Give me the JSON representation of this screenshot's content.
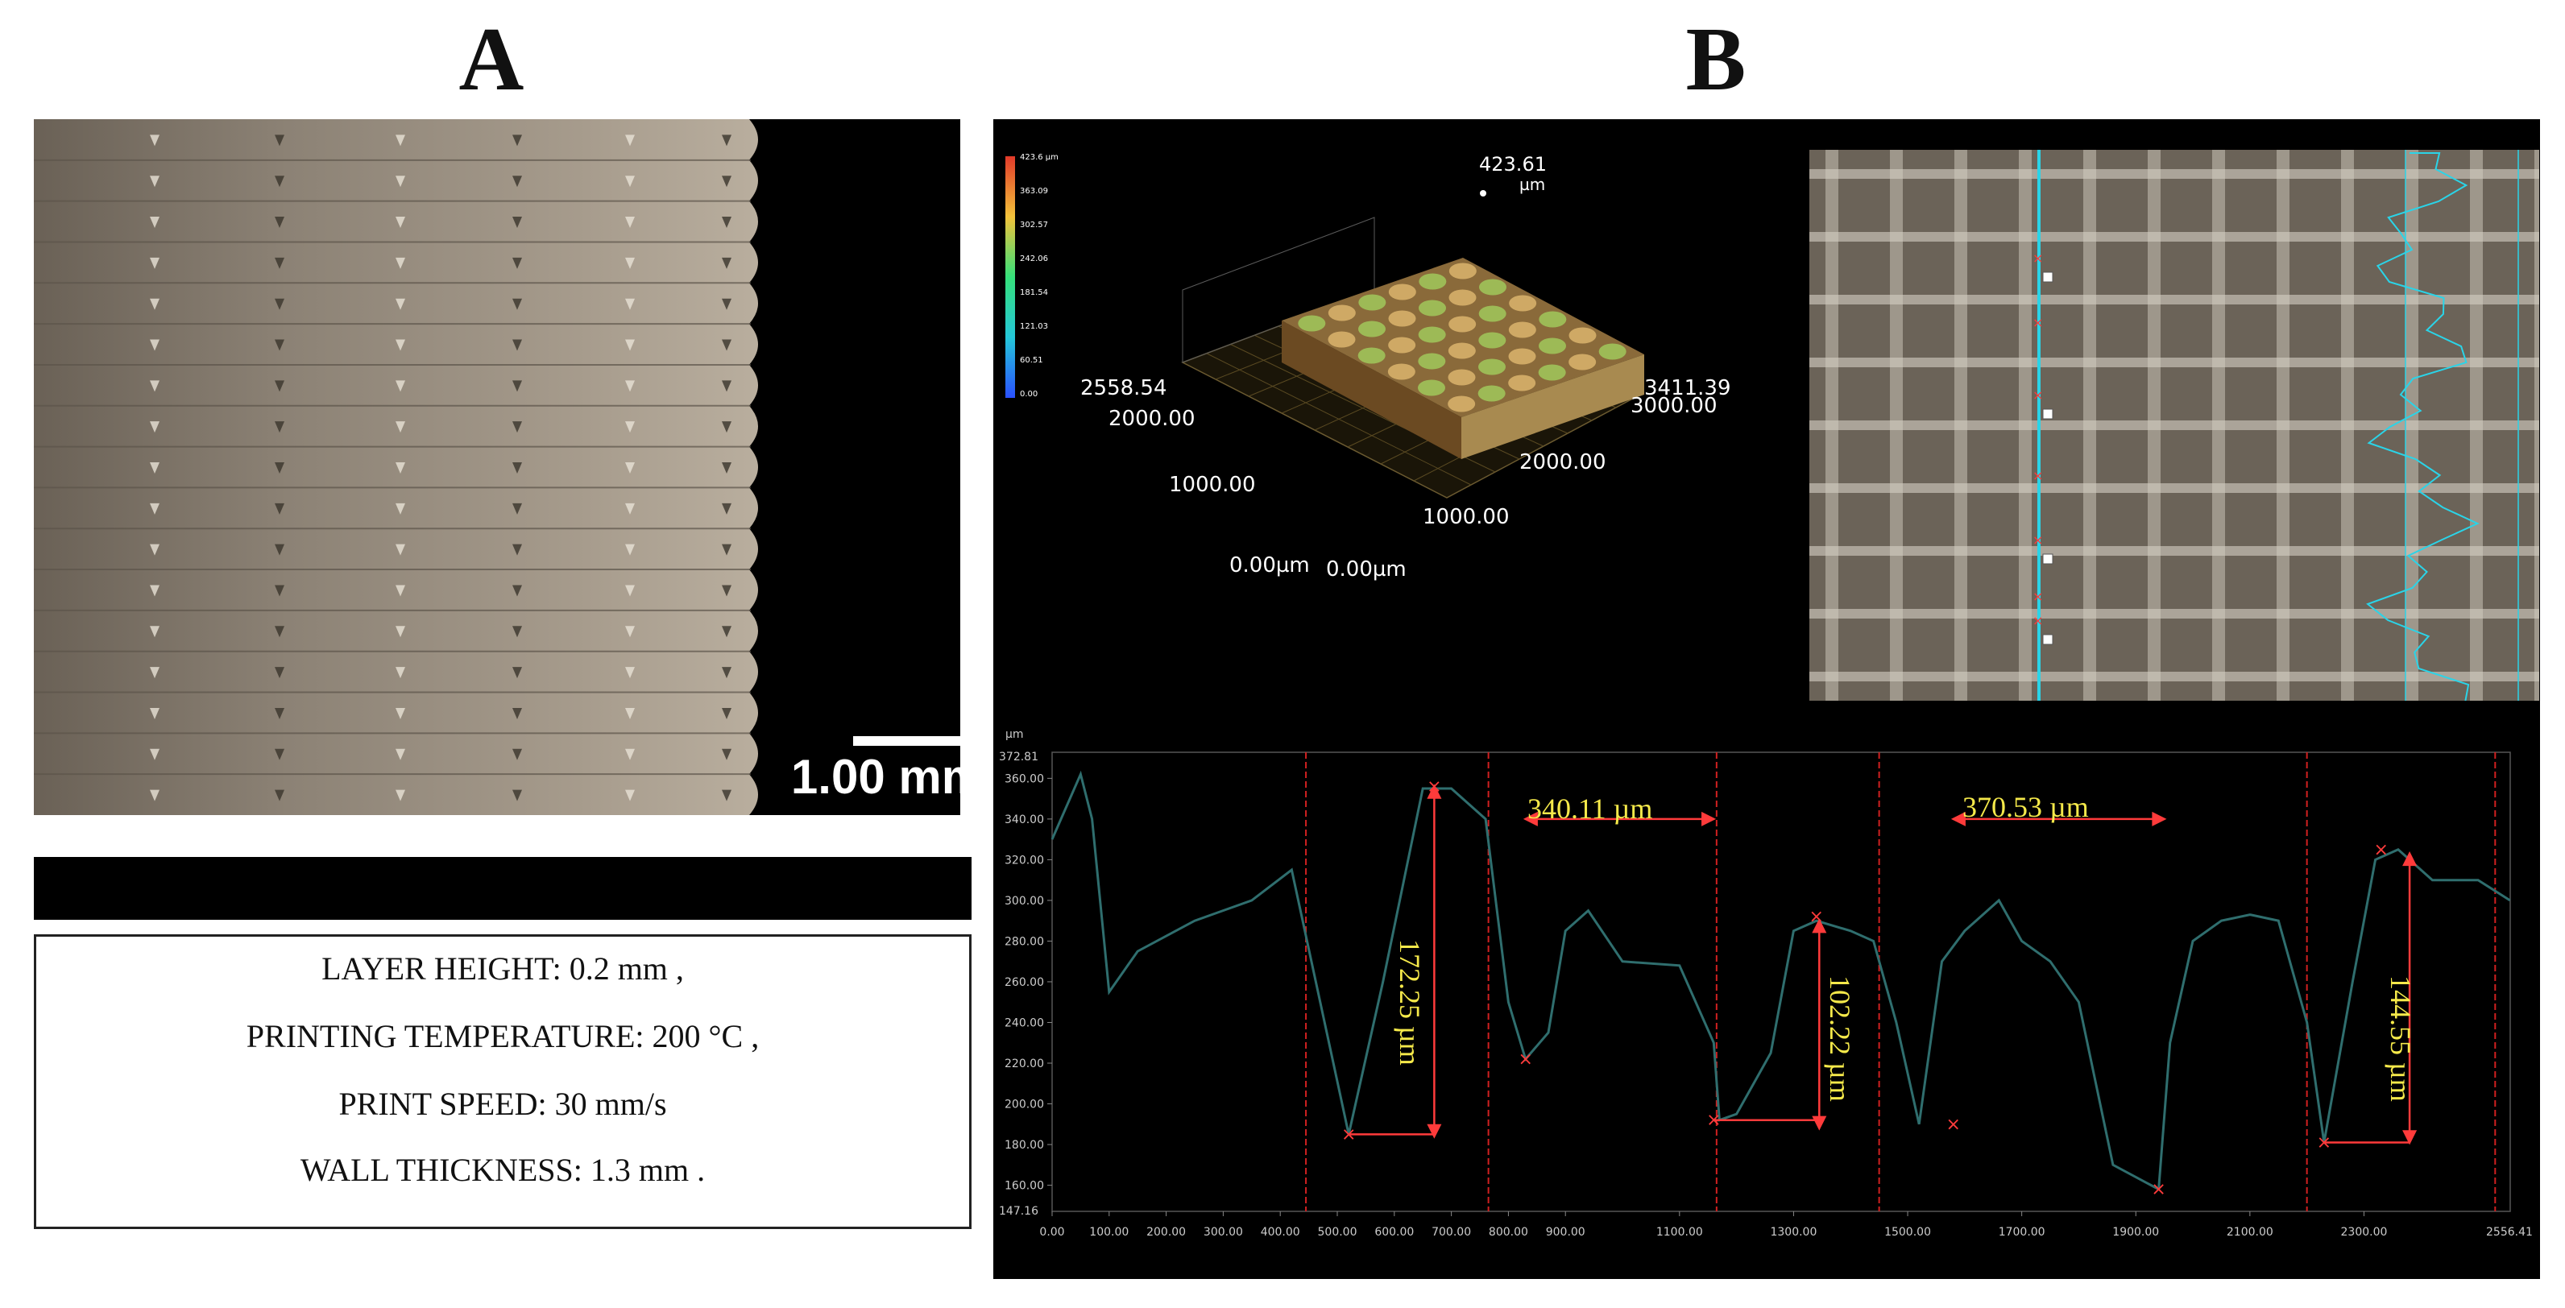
{
  "figure": {
    "panel_a_label": "A",
    "panel_b_label": "B"
  },
  "panel_a": {
    "scale_bar_text": "1.00 mm",
    "parameters": [
      "LAYER HEIGHT: 0.2 mm ,",
      "PRINTING TEMPERATURE: 200 °C ,",
      "PRINT SPEED: 30 mm/s",
      "WALL THICKNESS: 1.3 mm ."
    ]
  },
  "panel_b_3d": {
    "peak_value": "423.61",
    "peak_unit": "µm",
    "colorbar_ticks": [
      "423.6 µm",
      "363.09",
      "302.57",
      "242.06",
      "181.54",
      "121.03",
      "60.51",
      "0.00"
    ],
    "y_axis_labels": [
      "2558.54",
      "2000.00",
      "1000.00",
      "0.00µm"
    ],
    "x_axis_labels": [
      "3411.39",
      "3000.00",
      "2000.00",
      "1000.00",
      "0.00µm"
    ],
    "colors": {
      "low": "#2a50ff",
      "mid": "#35e07a",
      "high": "#e23a2a"
    }
  },
  "panel_b_profile": {
    "y_unit": "µm",
    "y_max_label": "372.81",
    "y_min_label": "147.16",
    "y_ticks": [
      360,
      340,
      320,
      300,
      280,
      260,
      240,
      220,
      200,
      180,
      160
    ],
    "x_ticks": [
      "0.00",
      "100.00",
      "200.00",
      "300.00",
      "400.00",
      "500.00",
      "600.00",
      "700.00",
      "800.00",
      "900.00",
      "1100.00",
      "1300.00",
      "1500.00",
      "1700.00",
      "1900.00",
      "2100.00",
      "2300.00"
    ],
    "x_max_label": "2556.41",
    "annotations": {
      "width_1": "340.11 µm",
      "width_2": "370.53 µm",
      "height_1": "172.25 µm",
      "height_2": "102.22 µm",
      "height_3": "144.55 µm"
    },
    "colors": {
      "line": "#2f6e6e",
      "marker": "#ff3b3b",
      "label": "#f5e94a"
    }
  },
  "chart_data": {
    "type": "line",
    "x": [
      0,
      50,
      70,
      100,
      150,
      250,
      350,
      420,
      470,
      520,
      580,
      650,
      700,
      760,
      800,
      830,
      870,
      900,
      940,
      1000,
      1100,
      1160,
      1170,
      1200,
      1260,
      1300,
      1340,
      1400,
      1440,
      1480,
      1520,
      1560,
      1600,
      1660,
      1700,
      1750,
      1800,
      1860,
      1940,
      1960,
      2000,
      2050,
      2100,
      2150,
      2200,
      2230,
      2280,
      2320,
      2360,
      2420,
      2500,
      2556
    ],
    "series": [
      {
        "values": [
          330,
          362,
          340,
          255,
          275,
          290,
          300,
          315,
          250,
          185,
          260,
          355,
          355,
          340,
          250,
          222,
          235,
          285,
          295,
          270,
          268,
          230,
          192,
          195,
          225,
          285,
          290,
          285,
          280,
          240,
          190,
          270,
          285,
          300,
          280,
          270,
          250,
          170,
          158,
          230,
          280,
          290,
          293,
          290,
          240,
          181,
          260,
          320,
          325,
          310,
          310,
          300
        ]
      }
    ],
    "xlim": [
      0,
      2556.41
    ],
    "ylim": [
      147.16,
      372.81
    ],
    "ylabel": "µm"
  }
}
